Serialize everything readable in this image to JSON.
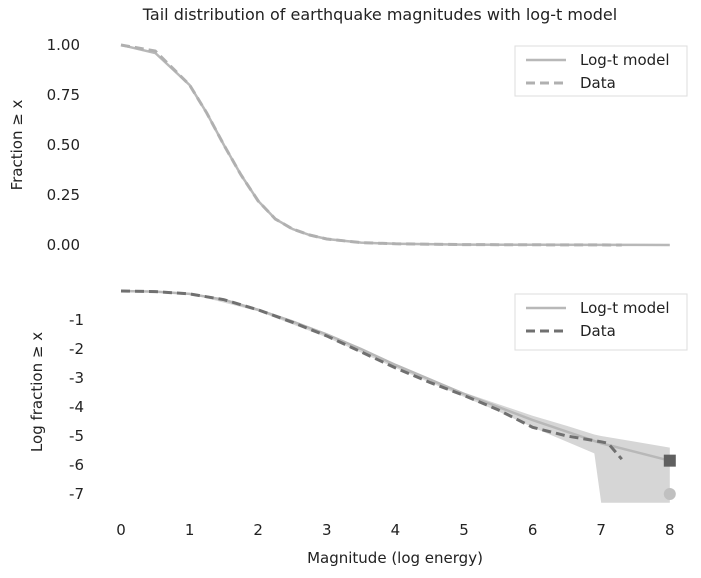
{
  "chart_data": [
    {
      "type": "line",
      "title": "Tail distribution of earthquake magnitudes with log-t model",
      "xlabel": "",
      "ylabel": "Fraction ≥ x",
      "ylim": [
        0,
        1
      ],
      "yticks": [
        "1.00",
        "0.75",
        "0.50",
        "0.25",
        "0.00"
      ],
      "ytick_values": [
        1,
        0.75,
        0.5,
        0.25,
        0
      ],
      "legend": "top-right",
      "series": [
        {
          "name": "Log-t model",
          "style": "solid",
          "color": "#b8b8b8",
          "x": [
            0,
            0.5,
            1,
            1.25,
            1.5,
            1.75,
            2,
            2.25,
            2.5,
            2.75,
            3,
            3.5,
            4,
            5,
            6,
            7,
            8
          ],
          "y": [
            1,
            0.96,
            0.8,
            0.66,
            0.5,
            0.35,
            0.22,
            0.13,
            0.08,
            0.05,
            0.03,
            0.012,
            0.006,
            0.002,
            0.001,
            0.0005,
            0.0003
          ]
        },
        {
          "name": "Data",
          "style": "dashed",
          "color": "#b0b0b0",
          "x": [
            0,
            0.5,
            1,
            1.25,
            1.5,
            1.75,
            2,
            2.25,
            2.5,
            2.75,
            3,
            3.5,
            4,
            5,
            6,
            7,
            7.3
          ],
          "y": [
            1,
            0.97,
            0.8,
            0.66,
            0.5,
            0.35,
            0.22,
            0.13,
            0.08,
            0.05,
            0.03,
            0.012,
            0.006,
            0.002,
            0.001,
            0.0005,
            0
          ]
        }
      ]
    },
    {
      "type": "line",
      "title": "",
      "xlabel": "Magnitude (log energy)",
      "ylabel": "Log fraction ≥ x",
      "ylim": [
        -7.4,
        0.1
      ],
      "xlim": [
        0,
        8
      ],
      "yticks": [
        "-1",
        "-2",
        "-3",
        "-4",
        "-5",
        "-6",
        "-7"
      ],
      "ytick_values": [
        -1,
        -2,
        -3,
        -4,
        -5,
        -6,
        -7
      ],
      "xticks": [
        "0",
        "1",
        "2",
        "3",
        "4",
        "5",
        "6",
        "7",
        "8"
      ],
      "legend": "top-right",
      "band": {
        "x": [
          0,
          1,
          2,
          3,
          4,
          5,
          5.5,
          6,
          6.5,
          6.9,
          7,
          7.5,
          8
        ],
        "upper": [
          0,
          -0.1,
          -0.6,
          -1.45,
          -2.5,
          -3.5,
          -3.9,
          -4.3,
          -4.65,
          -4.95,
          -5.0,
          -5.2,
          -5.4
        ],
        "lower": [
          0,
          -0.1,
          -0.7,
          -1.6,
          -2.65,
          -3.65,
          -4.15,
          -4.7,
          -5.2,
          -5.6,
          -7.3,
          -7.3,
          -7.3
        ]
      },
      "series": [
        {
          "name": "Log-t model",
          "style": "solid",
          "color": "#b8b8b8",
          "x": [
            0,
            0.5,
            1,
            1.5,
            2,
            2.5,
            3,
            3.5,
            4,
            4.5,
            5,
            5.5,
            6,
            6.5,
            7,
            7.5,
            8
          ],
          "y": [
            0,
            -0.02,
            -0.1,
            -0.3,
            -0.65,
            -1.05,
            -1.5,
            -2.0,
            -2.55,
            -3.05,
            -3.55,
            -4.0,
            -4.45,
            -4.85,
            -5.25,
            -5.55,
            -5.85
          ]
        },
        {
          "name": "Data",
          "style": "dashed",
          "color": "#707070",
          "x": [
            0,
            0.5,
            1,
            1.5,
            2,
            2.5,
            3,
            3.5,
            4,
            4.5,
            5,
            5.5,
            6,
            6.5,
            7,
            7.1,
            7.3
          ],
          "y": [
            0,
            -0.02,
            -0.1,
            -0.3,
            -0.65,
            -1.08,
            -1.55,
            -2.1,
            -2.65,
            -3.15,
            -3.6,
            -4.1,
            -4.7,
            -5.0,
            -5.2,
            -5.25,
            -5.8
          ]
        }
      ],
      "markers": [
        {
          "shape": "square",
          "x": 8,
          "y": -5.85,
          "color": "#606060"
        },
        {
          "shape": "circle",
          "x": 8,
          "y": -7,
          "color": "#c0c0c0"
        }
      ]
    }
  ]
}
